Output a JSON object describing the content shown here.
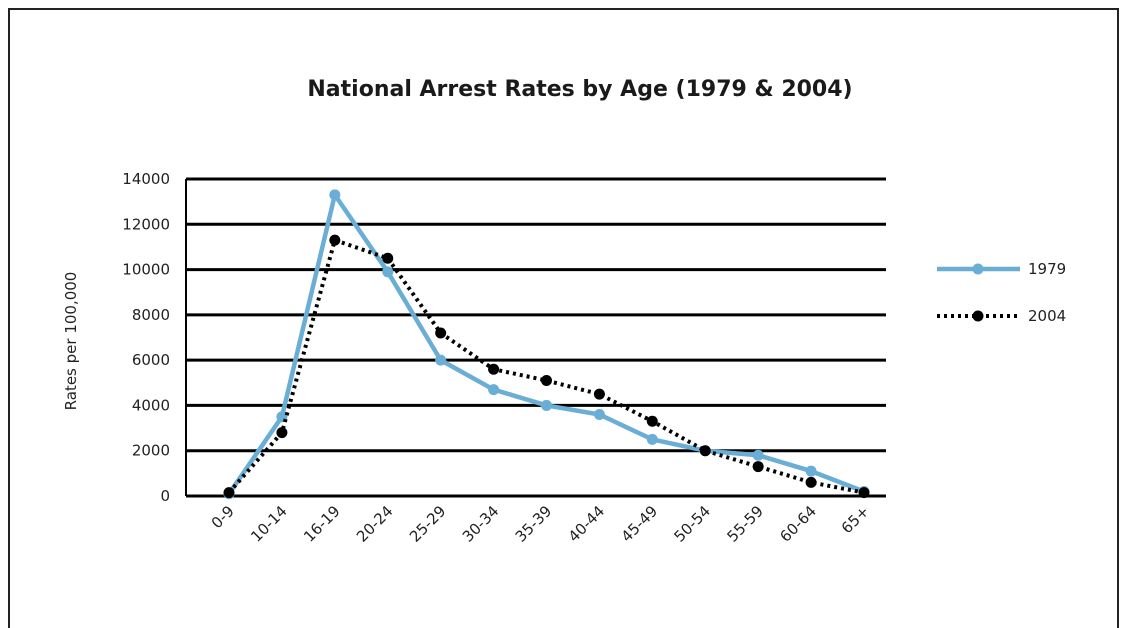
{
  "chart_data": {
    "type": "line",
    "title": "National Arrest Rates by Age (1979 & 2004)",
    "xlabel": "",
    "ylabel": "Rates per 100,000",
    "ylim": [
      0,
      14000
    ],
    "yticks": [
      0,
      2000,
      4000,
      6000,
      8000,
      10000,
      12000,
      14000
    ],
    "grid": true,
    "legend_position": "right",
    "categories": [
      "0-9",
      "10-14",
      "16-19",
      "20-24",
      "25-29",
      "30-34",
      "35-39",
      "40-44",
      "45-49",
      "50-54",
      "55-59",
      "60-64",
      "65+"
    ],
    "series": [
      {
        "name": "1979",
        "color": "#6aaed6",
        "style": "solid",
        "values": [
          100,
          3500,
          13300,
          9900,
          6000,
          4700,
          4000,
          3600,
          2500,
          2000,
          1800,
          1100,
          200
        ]
      },
      {
        "name": "2004",
        "color": "#000000",
        "style": "dotted",
        "values": [
          150,
          2800,
          11300,
          10500,
          7200,
          5600,
          5100,
          4500,
          3300,
          2000,
          1300,
          600,
          150
        ]
      }
    ]
  }
}
